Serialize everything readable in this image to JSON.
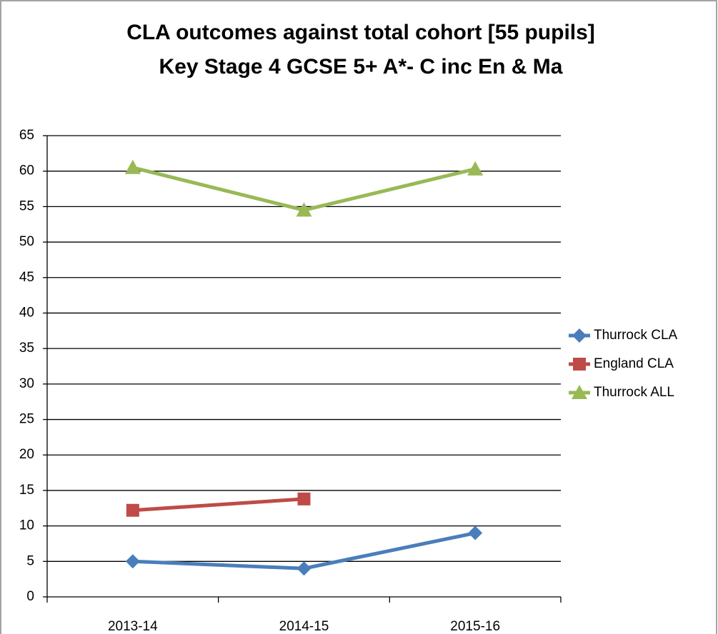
{
  "chart_data": {
    "type": "line",
    "title": "CLA outcomes against total cohort [55 pupils]",
    "subtitle": "Key Stage 4 GCSE 5+ A*- C inc En & Ma",
    "categories": [
      "2013-14",
      "2014-15",
      "2015-16"
    ],
    "series": [
      {
        "name": "Thurrock CLA",
        "color": "#4a7ebb",
        "marker": "diamond",
        "values": [
          5,
          4,
          9
        ]
      },
      {
        "name": "England CLA",
        "color": "#be4b48",
        "marker": "square",
        "values": [
          12.2,
          13.8,
          null
        ]
      },
      {
        "name": "Thurrock ALL",
        "color": "#98b954",
        "marker": "triangle",
        "values": [
          60.5,
          54.5,
          60.3
        ]
      }
    ],
    "ylim": [
      0,
      65
    ],
    "yticks": [
      0,
      5,
      10,
      15,
      20,
      25,
      30,
      35,
      40,
      45,
      50,
      55,
      60,
      65
    ],
    "grid": true,
    "legend": "right"
  }
}
